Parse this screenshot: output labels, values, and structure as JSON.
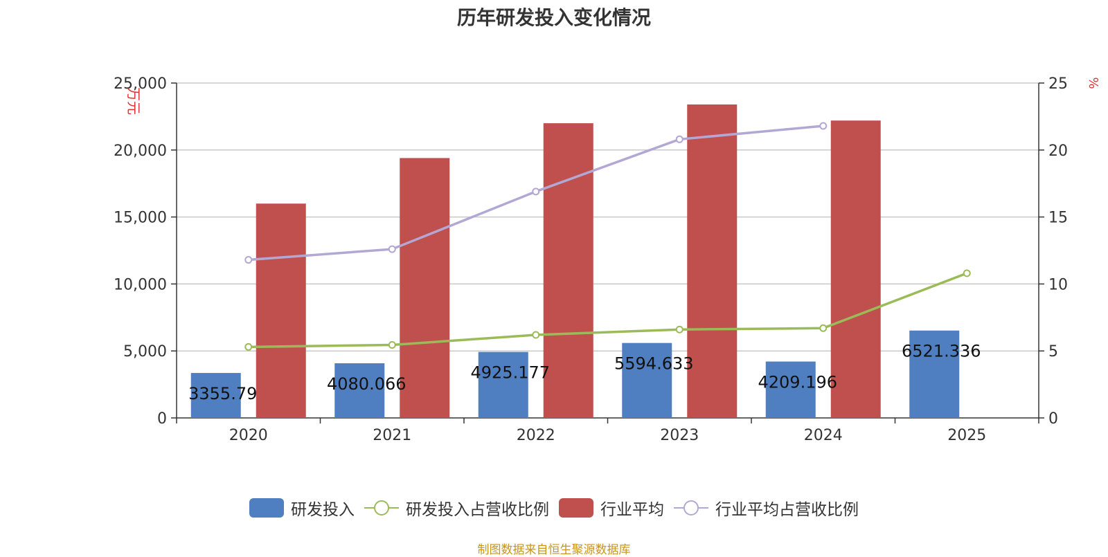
{
  "title": "历年研发投入变化情况",
  "source_note": "制图数据来自恒生聚源数据库",
  "colors": {
    "rd_bar": "#4f7fc0",
    "industry_bar": "#c0504d",
    "rd_ratio_line": "#9bbb59",
    "industry_ratio_line": "#b3a8d4",
    "left_unit": "#e03030",
    "source": "#c8941a"
  },
  "legend": [
    {
      "label": "研发投入",
      "kind": "bar",
      "color": "#4f7fc0"
    },
    {
      "label": "研发投入占营收比例",
      "kind": "line",
      "color": "#9bbb59"
    },
    {
      "label": "行业平均",
      "kind": "bar",
      "color": "#c0504d"
    },
    {
      "label": "行业平均占营收比例",
      "kind": "line",
      "color": "#b3a8d4"
    }
  ],
  "chart_data": {
    "type": "bar",
    "categories": [
      "2020",
      "2021",
      "2022",
      "2023",
      "2024",
      "2025"
    ],
    "y_left": {
      "label": "万元",
      "range": [
        0,
        25000
      ],
      "ticks": [
        0,
        5000,
        10000,
        15000,
        20000,
        25000
      ],
      "tick_labels": [
        "0",
        "5,000",
        "10,000",
        "15,000",
        "20,000",
        "25,000"
      ]
    },
    "y_right": {
      "label": "%",
      "range": [
        0,
        25
      ],
      "ticks": [
        0,
        5,
        10,
        15,
        20,
        25
      ],
      "tick_labels": [
        "0",
        "5",
        "10",
        "15",
        "20",
        "25"
      ]
    },
    "grid": true,
    "legend_position": "bottom",
    "series": [
      {
        "name": "研发投入",
        "type": "bar",
        "axis": "left",
        "values": [
          3355.79,
          4080.066,
          4925.177,
          5594.633,
          4209.196,
          6521.336
        ],
        "labels": [
          "3355.79",
          "4080.066",
          "4925.177",
          "5594.633",
          "4209.196",
          "6521.336"
        ]
      },
      {
        "name": "行业平均",
        "type": "bar",
        "axis": "left",
        "values": [
          16000,
          19400,
          22000,
          23400,
          22200,
          null
        ]
      },
      {
        "name": "研发投入占营收比例",
        "type": "line",
        "axis": "right",
        "values": [
          5.3,
          5.45,
          6.2,
          6.6,
          6.7,
          10.8
        ]
      },
      {
        "name": "行业平均占营收比例",
        "type": "line",
        "axis": "right",
        "values": [
          11.8,
          12.6,
          16.9,
          20.8,
          21.8,
          null
        ]
      }
    ]
  }
}
